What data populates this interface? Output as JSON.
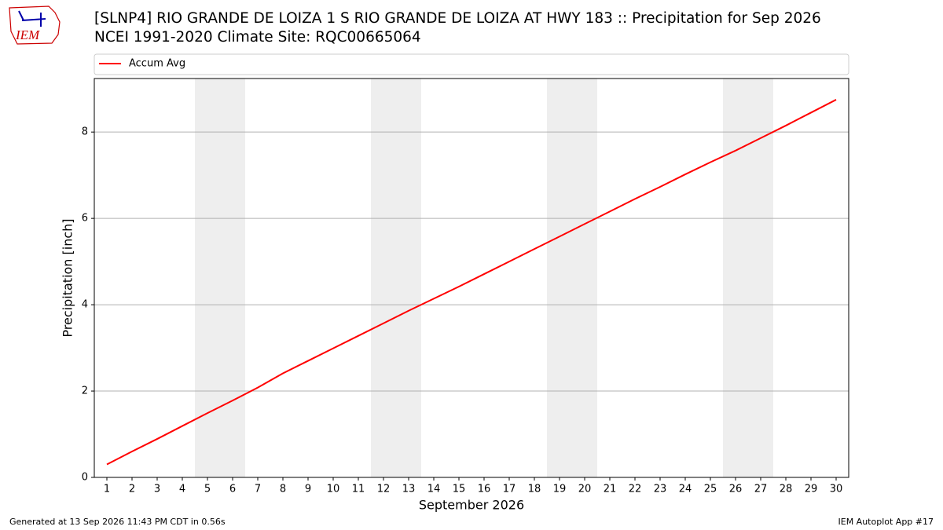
{
  "logo": "IEM",
  "footer": {
    "left": "Generated at 13 Sep 2026 11:43 PM CDT in 0.56s",
    "right": "IEM Autoplot App #17"
  },
  "chart_data": {
    "type": "line",
    "title": "[SLNP4] RIO GRANDE DE LOIZA 1 S RIO GRANDE DE LOIZA AT HWY 183 :: Precipitation for Sep 2026",
    "subtitle": "NCEI 1991-2020 Climate Site: RQC00665064",
    "xlabel": "September 2026",
    "ylabel": "Precipitation [inch]",
    "x": [
      1,
      2,
      3,
      4,
      5,
      6,
      7,
      8,
      9,
      10,
      11,
      12,
      13,
      14,
      15,
      16,
      17,
      18,
      19,
      20,
      21,
      22,
      23,
      24,
      25,
      26,
      27,
      28,
      29,
      30
    ],
    "series": [
      {
        "name": "Accum Avg",
        "color": "#ff0000",
        "values": [
          0.3,
          0.6,
          0.89,
          1.19,
          1.49,
          1.78,
          2.08,
          2.41,
          2.7,
          2.99,
          3.28,
          3.57,
          3.86,
          4.14,
          4.42,
          4.71,
          5.0,
          5.29,
          5.58,
          5.87,
          6.16,
          6.45,
          6.73,
          7.02,
          7.3,
          7.57,
          7.86,
          8.15,
          8.45,
          8.75
        ]
      }
    ],
    "shaded_spans": [
      [
        4.5,
        6.5
      ],
      [
        11.5,
        13.5
      ],
      [
        18.5,
        20.5
      ],
      [
        25.5,
        27.5
      ]
    ],
    "shade_color": "#eeeeee",
    "xlim": [
      0.5,
      30.5
    ],
    "ylim": [
      0,
      9.24
    ],
    "xticks": [
      1,
      2,
      3,
      4,
      5,
      6,
      7,
      8,
      9,
      10,
      11,
      12,
      13,
      14,
      15,
      16,
      17,
      18,
      19,
      20,
      21,
      22,
      23,
      24,
      25,
      26,
      27,
      28,
      29,
      30
    ],
    "yticks": [
      0,
      2,
      4,
      6,
      8
    ],
    "grid": true,
    "legend": "top"
  }
}
